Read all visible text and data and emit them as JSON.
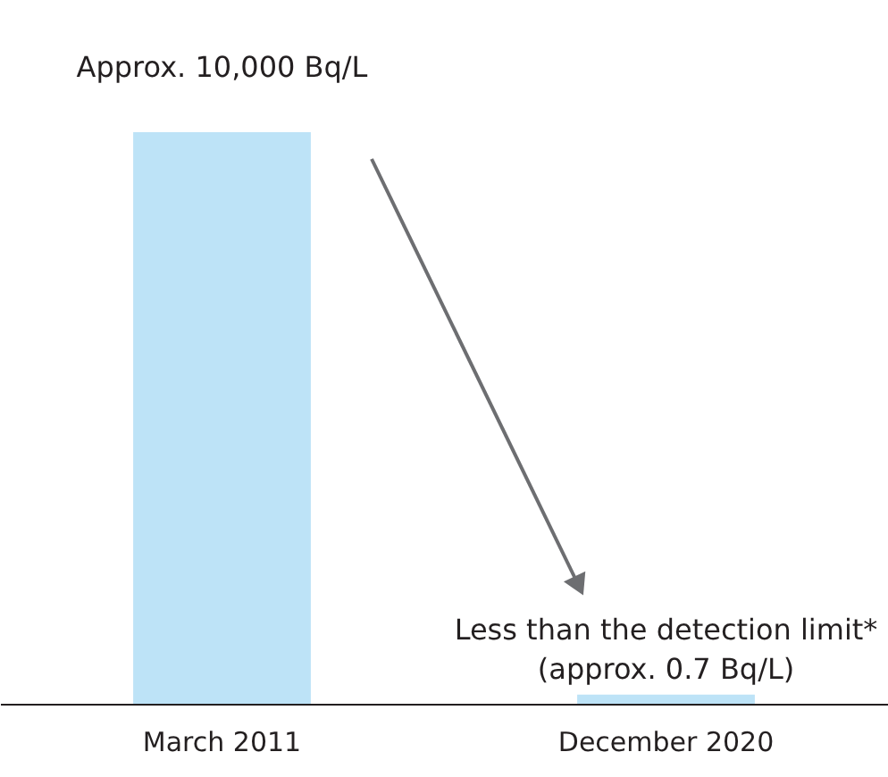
{
  "chart_data": {
    "type": "bar",
    "log": true,
    "categories": [
      "March 2011",
      "December 2020"
    ],
    "values": [
      10000,
      0.7
    ],
    "ylim": [
      0.6,
      10000
    ],
    "color": "#bde3f7",
    "value_labels": [
      "Approx. 10,000 Bq/L",
      "Less than the detection limit*\n(approx. 0.7 Bq/L)"
    ],
    "grid": false
  }
}
